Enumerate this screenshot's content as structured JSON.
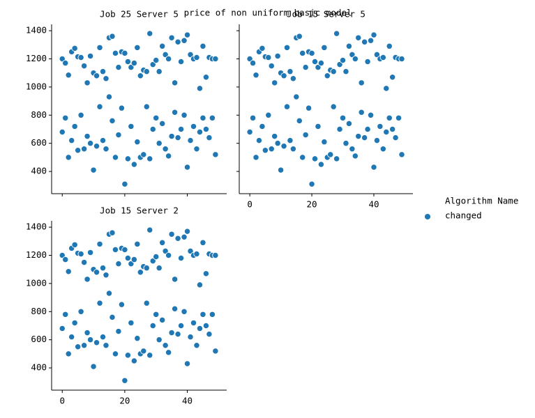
{
  "title": "price of non uniform basic model",
  "legend_title": "Algorithm Name",
  "chart_data": [
    {
      "type": "scatter",
      "title": "Job 25 Server 5",
      "xlim": [
        -3.4,
        52.6
      ],
      "ylim": [
        242,
        1445
      ],
      "xticks": [
        0,
        20,
        40
      ],
      "yticks": [
        400,
        600,
        800,
        1000,
        1200,
        1400
      ],
      "show_xticklabels": false,
      "show_yticklabels": true,
      "series": [
        {
          "name": "changed",
          "color": "#1f77b4",
          "x": [
            0,
            1,
            2,
            3,
            4,
            5,
            6,
            7,
            8,
            9,
            10,
            11,
            12,
            13,
            14,
            15,
            16,
            17,
            18,
            19,
            20,
            21,
            22,
            23,
            24,
            25,
            26,
            27,
            28,
            29,
            30,
            31,
            32,
            33,
            34,
            35,
            36,
            37,
            38,
            39,
            40,
            41,
            42,
            43,
            44,
            45,
            46,
            47,
            48,
            49,
            0,
            1,
            2,
            3,
            4,
            5,
            6,
            7,
            8,
            9,
            10,
            11,
            12,
            13,
            14,
            15,
            16,
            17,
            18,
            19,
            20,
            21,
            22,
            23,
            24,
            25,
            26,
            27,
            28,
            29,
            30,
            31,
            32,
            33,
            34,
            35,
            36,
            37,
            38,
            39,
            40,
            41,
            42,
            43,
            44,
            45,
            46,
            47,
            48,
            49
          ],
          "values": [
            1200,
            1170,
            1085,
            1250,
            1275,
            1215,
            1210,
            1150,
            1030,
            1220,
            1100,
            1080,
            1280,
            1110,
            1060,
            1350,
            1360,
            1240,
            1140,
            1250,
            1240,
            1180,
            1140,
            1170,
            1280,
            1080,
            1120,
            1110,
            1380,
            1160,
            1190,
            1110,
            1290,
            1230,
            1200,
            1350,
            1030,
            1320,
            1180,
            1330,
            1370,
            1230,
            1200,
            1210,
            990,
            1290,
            1070,
            1210,
            1200,
            1200,
            680,
            780,
            500,
            620,
            720,
            550,
            800,
            560,
            650,
            600,
            410,
            580,
            860,
            620,
            560,
            930,
            760,
            500,
            660,
            850,
            310,
            490,
            720,
            450,
            610,
            500,
            520,
            860,
            490,
            700,
            780,
            600,
            740,
            560,
            510,
            650,
            820,
            640,
            700,
            800,
            430,
            620,
            720,
            560,
            680,
            780,
            700,
            640,
            780,
            520
          ]
        }
      ]
    },
    {
      "type": "scatter",
      "title": "Job 15 Server 5",
      "xlim": [
        -3.4,
        52.6
      ],
      "ylim": [
        242,
        1445
      ],
      "xticks": [
        0,
        20,
        40
      ],
      "yticks": [
        400,
        600,
        800,
        1000,
        1200,
        1400
      ],
      "show_xticklabels": true,
      "show_yticklabels": false,
      "series": [
        {
          "name": "changed",
          "color": "#1f77b4",
          "x": [
            0,
            1,
            2,
            3,
            4,
            5,
            6,
            7,
            8,
            9,
            10,
            11,
            12,
            13,
            14,
            15,
            16,
            17,
            18,
            19,
            20,
            21,
            22,
            23,
            24,
            25,
            26,
            27,
            28,
            29,
            30,
            31,
            32,
            33,
            34,
            35,
            36,
            37,
            38,
            39,
            40,
            41,
            42,
            43,
            44,
            45,
            46,
            47,
            48,
            49,
            0,
            1,
            2,
            3,
            4,
            5,
            6,
            7,
            8,
            9,
            10,
            11,
            12,
            13,
            14,
            15,
            16,
            17,
            18,
            19,
            20,
            21,
            22,
            23,
            24,
            25,
            26,
            27,
            28,
            29,
            30,
            31,
            32,
            33,
            34,
            35,
            36,
            37,
            38,
            39,
            40,
            41,
            42,
            43,
            44,
            45,
            46,
            47,
            48,
            49
          ],
          "values": [
            1200,
            1170,
            1085,
            1250,
            1275,
            1215,
            1210,
            1150,
            1030,
            1220,
            1100,
            1080,
            1280,
            1110,
            1060,
            1350,
            1360,
            1240,
            1140,
            1250,
            1240,
            1180,
            1140,
            1170,
            1280,
            1080,
            1120,
            1110,
            1380,
            1160,
            1190,
            1110,
            1290,
            1230,
            1200,
            1350,
            1030,
            1320,
            1180,
            1330,
            1370,
            1230,
            1200,
            1210,
            990,
            1290,
            1070,
            1210,
            1200,
            1200,
            680,
            780,
            500,
            620,
            720,
            550,
            800,
            560,
            650,
            600,
            410,
            580,
            860,
            620,
            560,
            930,
            760,
            500,
            660,
            850,
            310,
            490,
            720,
            450,
            610,
            500,
            520,
            860,
            490,
            700,
            780,
            600,
            740,
            560,
            510,
            650,
            820,
            640,
            700,
            800,
            430,
            620,
            720,
            560,
            680,
            780,
            700,
            640,
            780,
            520
          ]
        }
      ]
    },
    {
      "type": "scatter",
      "title": "Job 15 Server 2",
      "xlim": [
        -3.4,
        52.6
      ],
      "ylim": [
        242,
        1445
      ],
      "xticks": [
        0,
        20,
        40
      ],
      "yticks": [
        400,
        600,
        800,
        1000,
        1200,
        1400
      ],
      "show_xticklabels": true,
      "show_yticklabels": true,
      "series": [
        {
          "name": "changed",
          "color": "#1f77b4",
          "x": [
            0,
            1,
            2,
            3,
            4,
            5,
            6,
            7,
            8,
            9,
            10,
            11,
            12,
            13,
            14,
            15,
            16,
            17,
            18,
            19,
            20,
            21,
            22,
            23,
            24,
            25,
            26,
            27,
            28,
            29,
            30,
            31,
            32,
            33,
            34,
            35,
            36,
            37,
            38,
            39,
            40,
            41,
            42,
            43,
            44,
            45,
            46,
            47,
            48,
            49,
            0,
            1,
            2,
            3,
            4,
            5,
            6,
            7,
            8,
            9,
            10,
            11,
            12,
            13,
            14,
            15,
            16,
            17,
            18,
            19,
            20,
            21,
            22,
            23,
            24,
            25,
            26,
            27,
            28,
            29,
            30,
            31,
            32,
            33,
            34,
            35,
            36,
            37,
            38,
            39,
            40,
            41,
            42,
            43,
            44,
            45,
            46,
            47,
            48,
            49
          ],
          "values": [
            1200,
            1170,
            1085,
            1250,
            1275,
            1215,
            1210,
            1150,
            1030,
            1220,
            1100,
            1080,
            1280,
            1110,
            1060,
            1350,
            1360,
            1240,
            1140,
            1250,
            1240,
            1180,
            1140,
            1170,
            1280,
            1080,
            1120,
            1110,
            1380,
            1160,
            1190,
            1110,
            1290,
            1230,
            1200,
            1350,
            1030,
            1320,
            1180,
            1330,
            1370,
            1230,
            1200,
            1210,
            990,
            1290,
            1070,
            1210,
            1200,
            1200,
            680,
            780,
            500,
            620,
            720,
            550,
            800,
            560,
            650,
            600,
            410,
            580,
            860,
            620,
            560,
            930,
            760,
            500,
            660,
            850,
            310,
            490,
            720,
            450,
            610,
            500,
            520,
            860,
            490,
            700,
            780,
            600,
            740,
            560,
            510,
            650,
            820,
            640,
            700,
            800,
            430,
            620,
            720,
            560,
            680,
            780,
            700,
            640,
            780,
            520
          ]
        }
      ]
    }
  ]
}
